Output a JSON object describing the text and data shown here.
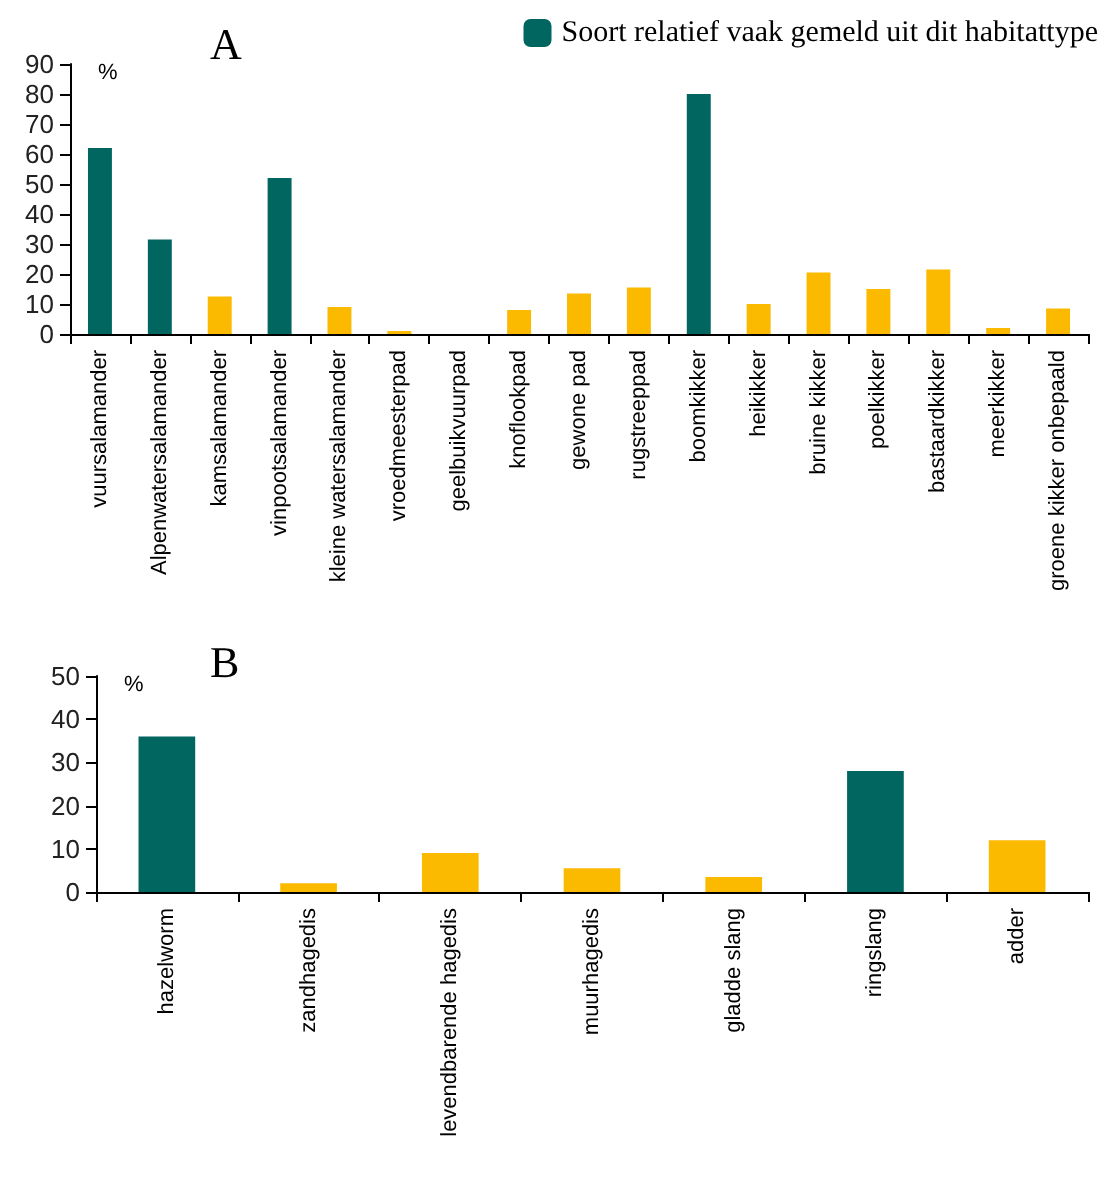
{
  "chart_data": [
    {
      "type": "bar",
      "title": "A",
      "ylabel": "%",
      "stacked": true,
      "legend": "top right",
      "grid": false,
      "categories": [
        "vuursalamander",
        "Alpenwatersalamander",
        "kamsalamander",
        "vinpootsalamander",
        "kleine watersalamander",
        "vroedmeesterpad",
        "geelbuikvuurpad",
        "knoflookpad",
        "gewone pad",
        "rugstreeppad",
        "boomkikker",
        "heikikker",
        "bruine kikker",
        "poelkikker",
        "bastaardkikker",
        "meerkikker",
        "groene kikker onbepaald"
      ],
      "series": [
        {
          "name": "Soort relatief vaak gemeld uit dit habitattype",
          "color": "#00665f",
          "values": [
            62,
            31.5,
            null,
            52,
            null,
            null,
            null,
            null,
            null,
            null,
            80,
            null,
            null,
            null,
            null,
            null,
            null
          ]
        },
        {
          "color": "#fbb900",
          "values": [
            null,
            null,
            12.5,
            null,
            9,
            1,
            0,
            8,
            13.5,
            15.5,
            null,
            10,
            20.5,
            15,
            21.5,
            2,
            8.5
          ]
        }
      ],
      "ylim": [
        0,
        90
      ],
      "yticks": [
        0,
        10,
        20,
        30,
        40,
        50,
        60,
        70,
        80,
        90
      ]
    },
    {
      "type": "bar",
      "title": "B",
      "ylabel": "%",
      "stacked": true,
      "legend": false,
      "grid": false,
      "categories": [
        "hazelworm",
        "zandhagedis",
        "levendbarende hagedis",
        "muurhagedis",
        "gladde slang",
        "ringslang",
        "adder"
      ],
      "series": [
        {
          "color": "#00665f",
          "values": [
            36,
            null,
            null,
            null,
            null,
            28,
            null
          ]
        },
        {
          "color": "#fbb900",
          "values": [
            null,
            2,
            9,
            5.5,
            3.5,
            null,
            12
          ]
        }
      ],
      "ylim": [
        0,
        50
      ],
      "yticks": [
        0,
        10,
        20,
        30,
        40,
        50
      ]
    }
  ]
}
